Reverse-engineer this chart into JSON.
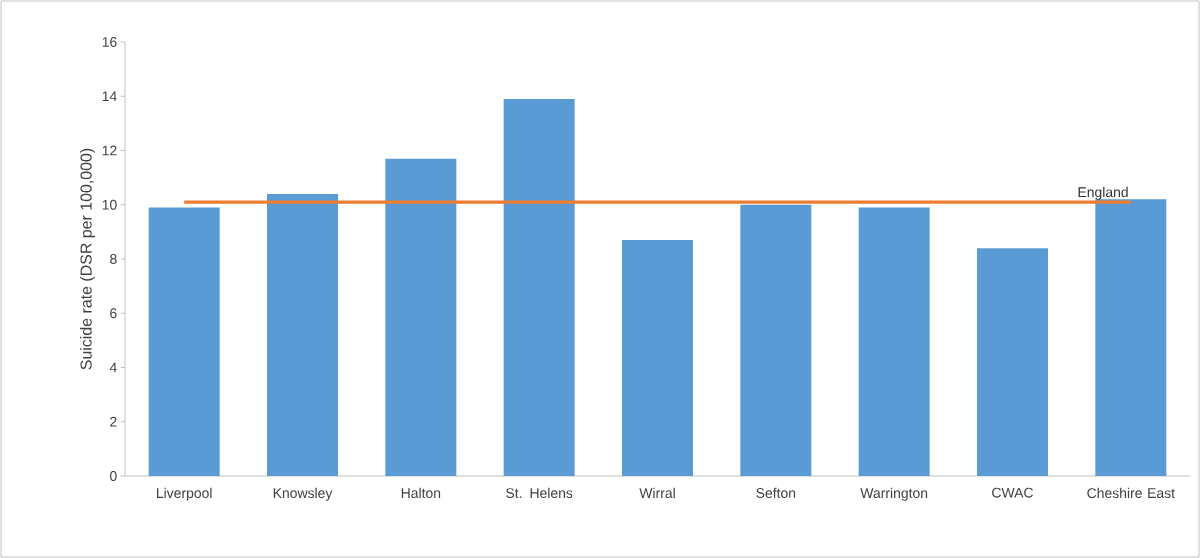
{
  "chart_data": {
    "type": "bar",
    "ylabel": "Suicide rate (DSR per 100,000)",
    "categories": [
      "Liverpool",
      "Knowsley",
      "Halton",
      "St. Helens",
      "Wirral",
      "Sefton",
      "Warrington",
      "CWAC",
      "Cheshire East"
    ],
    "series": [
      {
        "color": "#5b9bd5",
        "values": [
          9.9,
          10.4,
          11.7,
          13.9,
          8.7,
          10.0,
          9.9,
          8.4,
          10.2
        ]
      },
      {
        "type": "line",
        "name": "England",
        "color": "#ed7d31",
        "values": [
          10.1,
          10.1,
          10.1,
          10.1,
          10.1,
          10.1,
          10.1,
          10.1,
          10.1
        ]
      }
    ],
    "ylim": [
      0,
      16
    ],
    "yticks": [
      0,
      2,
      4,
      6,
      8,
      10,
      12,
      14,
      16
    ],
    "grid": false,
    "legend": false,
    "marker": "none",
    "line_style": "solid"
  }
}
